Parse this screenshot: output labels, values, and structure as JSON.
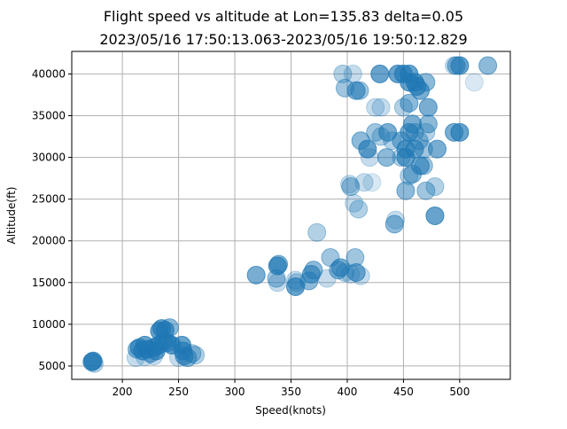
{
  "chart_data": {
    "type": "scatter",
    "title": "Flight speed vs altitude at Lon=135.83 delta=0.05",
    "subtitle": "2023/05/16 17:50:13.063-2023/05/16 19:50:12.829",
    "xlabel": "Speed(knots)",
    "ylabel": "Altitude(ft)",
    "xlim": [
      155,
      545
    ],
    "ylim": [
      3400,
      42700
    ],
    "xticks": [
      "200",
      "250",
      "300",
      "350",
      "400",
      "450",
      "500"
    ],
    "yticks": [
      "5000",
      "10000",
      "15000",
      "20000",
      "25000",
      "30000",
      "35000",
      "40000"
    ],
    "grid": true,
    "color": "#1f77b4",
    "points": [
      [
        173,
        5500,
        0.8
      ],
      [
        174,
        5600,
        0.8
      ],
      [
        175,
        5300,
        0.4
      ],
      [
        212,
        6000,
        0.3
      ],
      [
        213,
        7000,
        0.6
      ],
      [
        215,
        7200,
        0.8
      ],
      [
        218,
        6800,
        0.8
      ],
      [
        220,
        7500,
        0.8
      ],
      [
        222,
        7000,
        0.8
      ],
      [
        225,
        6500,
        0.6
      ],
      [
        228,
        7200,
        0.8
      ],
      [
        230,
        6800,
        0.8
      ],
      [
        232,
        7500,
        0.8
      ],
      [
        233,
        9200,
        0.8
      ],
      [
        235,
        9500,
        0.8
      ],
      [
        237,
        8000,
        0.8
      ],
      [
        238,
        9300,
        0.8
      ],
      [
        240,
        7800,
        0.8
      ],
      [
        242,
        9600,
        0.6
      ],
      [
        244,
        7500,
        0.8
      ],
      [
        228,
        6200,
        0.3
      ],
      [
        220,
        6100,
        0.3
      ],
      [
        253,
        7500,
        0.8
      ],
      [
        254,
        6800,
        0.8
      ],
      [
        255,
        6200,
        0.7
      ],
      [
        258,
        6000,
        0.6
      ],
      [
        262,
        6500,
        0.5
      ],
      [
        265,
        6300,
        0.4
      ],
      [
        250,
        6000,
        0.3
      ],
      [
        319,
        15900,
        0.7
      ],
      [
        337,
        15500,
        0.5
      ],
      [
        338,
        17000,
        0.8
      ],
      [
        339,
        17200,
        0.6
      ],
      [
        338,
        15000,
        0.3
      ],
      [
        354,
        14500,
        0.8
      ],
      [
        355,
        15000,
        0.4
      ],
      [
        354,
        15300,
        0.3
      ],
      [
        366,
        15200,
        0.6
      ],
      [
        368,
        16000,
        0.7
      ],
      [
        370,
        16500,
        0.6
      ],
      [
        373,
        21000,
        0.4
      ],
      [
        382,
        15500,
        0.3
      ],
      [
        385,
        18000,
        0.5
      ],
      [
        392,
        16500,
        0.6
      ],
      [
        394,
        16800,
        0.7
      ],
      [
        398,
        16200,
        0.4
      ],
      [
        403,
        16000,
        0.3
      ],
      [
        408,
        16200,
        0.7
      ],
      [
        407,
        18000,
        0.5
      ],
      [
        412,
        15800,
        0.3
      ],
      [
        396,
        40000,
        0.4
      ],
      [
        398,
        38300,
        0.5
      ],
      [
        405,
        40000,
        0.3
      ],
      [
        408,
        38000,
        0.7
      ],
      [
        411,
        38000,
        0.5
      ],
      [
        425,
        36000,
        0.3
      ],
      [
        429,
        40000,
        0.8
      ],
      [
        430,
        36000,
        0.3
      ],
      [
        445,
        40000,
        0.8
      ],
      [
        450,
        40000,
        0.8
      ],
      [
        455,
        40000,
        0.8
      ],
      [
        455,
        39000,
        0.8
      ],
      [
        460,
        39000,
        0.8
      ],
      [
        462,
        38500,
        0.8
      ],
      [
        465,
        38000,
        0.7
      ],
      [
        470,
        39000,
        0.6
      ],
      [
        455,
        36500,
        0.6
      ],
      [
        450,
        36000,
        0.4
      ],
      [
        472,
        36000,
        0.7
      ],
      [
        458,
        34000,
        0.7
      ],
      [
        472,
        34000,
        0.6
      ],
      [
        448,
        32000,
        0.6
      ],
      [
        452,
        31000,
        0.7
      ],
      [
        455,
        33000,
        0.7
      ],
      [
        460,
        33000,
        0.5
      ],
      [
        464,
        32000,
        0.5
      ],
      [
        468,
        31000,
        0.5
      ],
      [
        470,
        33000,
        0.4
      ],
      [
        412,
        32000,
        0.6
      ],
      [
        418,
        31000,
        0.8
      ],
      [
        425,
        33000,
        0.5
      ],
      [
        430,
        32500,
        0.4
      ],
      [
        436,
        33000,
        0.7
      ],
      [
        440,
        32000,
        0.4
      ],
      [
        435,
        30000,
        0.6
      ],
      [
        420,
        30000,
        0.3
      ],
      [
        448,
        30000,
        0.4
      ],
      [
        452,
        30000,
        0.8
      ],
      [
        458,
        28000,
        0.6
      ],
      [
        460,
        31000,
        0.7
      ],
      [
        465,
        29000,
        0.7
      ],
      [
        468,
        29000,
        0.5
      ],
      [
        455,
        27800,
        0.4
      ],
      [
        452,
        26000,
        0.6
      ],
      [
        470,
        26000,
        0.5
      ],
      [
        478,
        26500,
        0.4
      ],
      [
        480,
        31000,
        0.7
      ],
      [
        403,
        26500,
        0.5
      ],
      [
        402,
        26800,
        0.3
      ],
      [
        415,
        27000,
        0.3
      ],
      [
        422,
        27000,
        0.2
      ],
      [
        406,
        24500,
        0.3
      ],
      [
        410,
        23800,
        0.4
      ],
      [
        442,
        22000,
        0.6
      ],
      [
        443,
        22500,
        0.3
      ],
      [
        478,
        23000,
        0.8
      ],
      [
        495,
        33000,
        0.7
      ],
      [
        500,
        33000,
        0.8
      ],
      [
        497,
        41000,
        0.6
      ],
      [
        500,
        41000,
        0.8
      ],
      [
        525,
        41000,
        0.6
      ],
      [
        513,
        39000,
        0.2
      ],
      [
        495,
        41000,
        0.3
      ]
    ]
  }
}
